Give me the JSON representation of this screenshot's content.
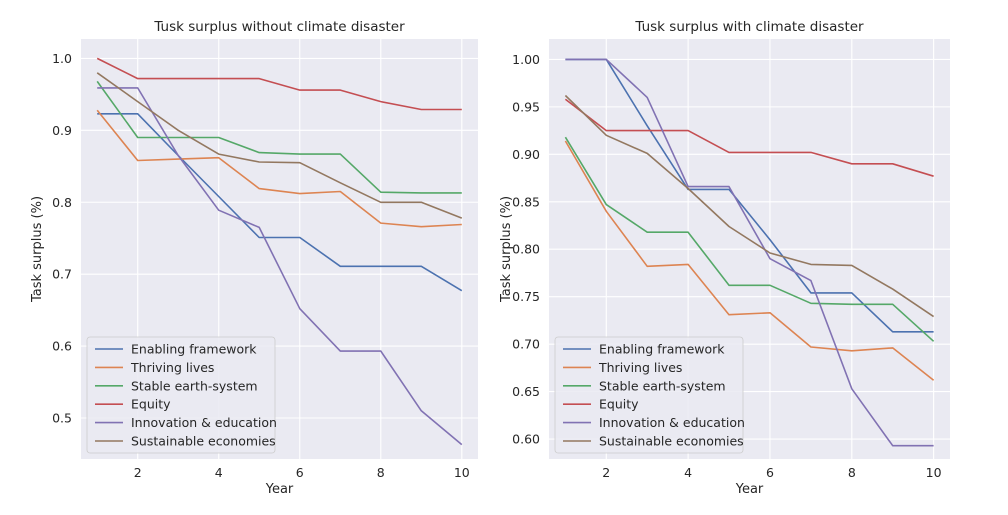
{
  "chart_data": [
    {
      "type": "line",
      "title": "Tusk surplus without climate disaster",
      "xlabel": "Year",
      "ylabel": "Task surplus (%)",
      "x": [
        1,
        2,
        3,
        4,
        5,
        6,
        7,
        8,
        9,
        10
      ],
      "xlim": [
        0.6,
        10.4
      ],
      "ylim": [
        0.443,
        1.027
      ],
      "xticks": [
        2,
        4,
        6,
        8,
        10
      ],
      "yticks": [
        0.5,
        0.6,
        0.7,
        0.8,
        0.9,
        1.0
      ],
      "ytick_labels": [
        "0.5",
        "0.6",
        "0.7",
        "0.8",
        "0.9",
        "1.0"
      ],
      "grid": true,
      "legend_position": "lower-left",
      "series": [
        {
          "name": "Enabling framework",
          "color": "#4c72b0",
          "values": [
            0.923,
            0.923,
            0.865,
            0.808,
            0.751,
            0.751,
            0.711,
            0.711,
            0.711,
            0.677
          ]
        },
        {
          "name": "Thriving lives",
          "color": "#dd8452",
          "values": [
            0.928,
            0.858,
            0.86,
            0.862,
            0.819,
            0.812,
            0.815,
            0.771,
            0.766,
            0.769
          ]
        },
        {
          "name": "Stable earth-system",
          "color": "#55a868",
          "values": [
            0.968,
            0.89,
            0.89,
            0.89,
            0.869,
            0.867,
            0.867,
            0.814,
            0.813,
            0.813
          ]
        },
        {
          "name": "Equity",
          "color": "#c44e52",
          "values": [
            1.0,
            0.972,
            0.972,
            0.972,
            0.972,
            0.956,
            0.956,
            0.94,
            0.929,
            0.929
          ]
        },
        {
          "name": "Innovation & education",
          "color": "#8172b3",
          "values": [
            0.959,
            0.959,
            0.865,
            0.789,
            0.765,
            0.652,
            0.593,
            0.593,
            0.51,
            0.463
          ]
        },
        {
          "name": "Sustainable economies",
          "color": "#937860",
          "values": [
            0.98,
            0.94,
            0.9,
            0.867,
            0.856,
            0.855,
            0.827,
            0.8,
            0.8,
            0.778
          ]
        }
      ]
    },
    {
      "type": "line",
      "title": "Tusk surplus with climate disaster",
      "xlabel": "Year",
      "ylabel": "Task surplus (%)",
      "x": [
        1,
        2,
        3,
        4,
        5,
        6,
        7,
        8,
        9,
        10
      ],
      "xlim": [
        0.6,
        10.4
      ],
      "ylim": [
        0.579,
        1.0215
      ],
      "xticks": [
        2,
        4,
        6,
        8,
        10
      ],
      "yticks": [
        0.6,
        0.65,
        0.7,
        0.75,
        0.8,
        0.85,
        0.9,
        0.95,
        1.0
      ],
      "ytick_labels": [
        "0.60",
        "0.65",
        "0.70",
        "0.75",
        "0.80",
        "0.85",
        "0.90",
        "0.95",
        "1.00"
      ],
      "grid": true,
      "legend_position": "lower-left",
      "series": [
        {
          "name": "Enabling framework",
          "color": "#4c72b0",
          "values": [
            1.0,
            1.0,
            0.93,
            0.863,
            0.863,
            0.81,
            0.754,
            0.754,
            0.713,
            0.713
          ]
        },
        {
          "name": "Thriving lives",
          "color": "#dd8452",
          "values": [
            0.914,
            0.84,
            0.782,
            0.784,
            0.731,
            0.733,
            0.697,
            0.693,
            0.696,
            0.662
          ]
        },
        {
          "name": "Stable earth-system",
          "color": "#55a868",
          "values": [
            0.918,
            0.847,
            0.818,
            0.818,
            0.762,
            0.762,
            0.743,
            0.742,
            0.742,
            0.703
          ]
        },
        {
          "name": "Equity",
          "color": "#c44e52",
          "values": [
            0.958,
            0.925,
            0.925,
            0.925,
            0.902,
            0.902,
            0.902,
            0.89,
            0.89,
            0.877
          ]
        },
        {
          "name": "Innovation & education",
          "color": "#8172b3",
          "values": [
            1.0,
            1.0,
            0.96,
            0.866,
            0.866,
            0.79,
            0.767,
            0.653,
            0.593,
            0.593
          ]
        },
        {
          "name": "Sustainable economies",
          "color": "#937860",
          "values": [
            0.962,
            0.92,
            0.901,
            0.864,
            0.824,
            0.796,
            0.784,
            0.783,
            0.758,
            0.729
          ]
        }
      ]
    }
  ]
}
